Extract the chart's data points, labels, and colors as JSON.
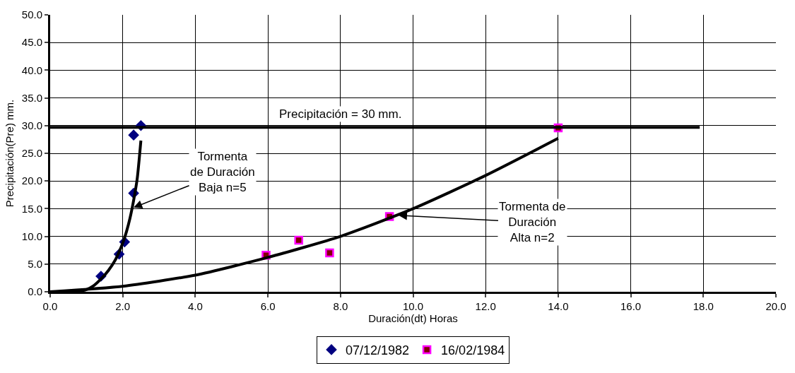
{
  "chart_data": {
    "type": "scatter",
    "xlabel": "Duración(dt) Horas",
    "ylabel": "Precipitación(Pre) mm.",
    "xlim": [
      0,
      20
    ],
    "xticks": [
      {
        "value": 0,
        "label": "0.0"
      },
      {
        "value": 2,
        "label": "2.0"
      },
      {
        "value": 4,
        "label": "4.0"
      },
      {
        "value": 6,
        "label": "6.0"
      },
      {
        "value": 8,
        "label": "8.0"
      },
      {
        "value": 10,
        "label": "10.0"
      },
      {
        "value": 12,
        "label": "12.0"
      },
      {
        "value": 14,
        "label": "14.0"
      },
      {
        "value": 16,
        "label": "16.0"
      },
      {
        "value": 18,
        "label": "18.0"
      },
      {
        "value": 20,
        "label": "20.0"
      }
    ],
    "ylim": [
      0,
      50
    ],
    "yticks": [
      {
        "value": 0,
        "label": "0.0"
      },
      {
        "value": 5,
        "label": "5.0"
      },
      {
        "value": 10,
        "label": "10.0"
      },
      {
        "value": 15,
        "label": "15.0"
      },
      {
        "value": 20,
        "label": "20.0"
      },
      {
        "value": 25,
        "label": "25.0"
      },
      {
        "value": 30,
        "label": "30.0"
      },
      {
        "value": 35,
        "label": "35.0"
      },
      {
        "value": 40,
        "label": "40.0"
      },
      {
        "value": 45,
        "label": "45.0"
      },
      {
        "value": 50,
        "label": "50.0"
      }
    ],
    "grid": true,
    "legend": "bottom",
    "series": [
      {
        "name": "07/12/1982",
        "marker": "diamond",
        "color": "#000080",
        "x": [
          1.4,
          1.9,
          2.05,
          2.3,
          2.3,
          2.5
        ],
        "values": [
          2.8,
          6.8,
          9.0,
          17.8,
          28.3,
          30.0
        ]
      },
      {
        "name": "16/02/1984",
        "marker": "square",
        "color": "#ff00ff",
        "x": [
          5.95,
          6.85,
          7.7,
          9.35,
          14.0
        ],
        "values": [
          6.6,
          9.3,
          7.0,
          13.6,
          29.6
        ]
      },
      {
        "type": "line",
        "color": "#000000",
        "x": [
          0,
          0.6,
          0.8,
          1.0,
          1.2,
          1.4,
          1.6,
          1.8,
          2.0,
          2.1,
          2.2,
          2.3,
          2.4,
          2.5
        ],
        "values": [
          0,
          0,
          0.1,
          0.4,
          1.1,
          2.3,
          3.8,
          5.8,
          8.8,
          10.8,
          13.3,
          16.5,
          20.5,
          27.3
        ]
      },
      {
        "type": "line",
        "color": "#000000",
        "x": [
          0,
          2,
          4,
          6,
          8,
          10,
          12,
          14
        ],
        "values": [
          0,
          1.0,
          3.0,
          6.2,
          10.0,
          15.0,
          21.0,
          27.7
        ]
      },
      {
        "type": "line",
        "color": "#000000",
        "x": [
          0,
          17.9
        ],
        "values": [
          29.7,
          29.7
        ]
      }
    ],
    "annotations": [
      "Precipitación = 30 mm.",
      {
        "text": "Tormenta\nde Duración\nBaja n=5",
        "x": 2.3,
        "y": 15.2
      },
      {
        "text": "Tormenta de\nDuración\nAlta n=2",
        "x": 9.6,
        "y": 13.8
      }
    ]
  }
}
